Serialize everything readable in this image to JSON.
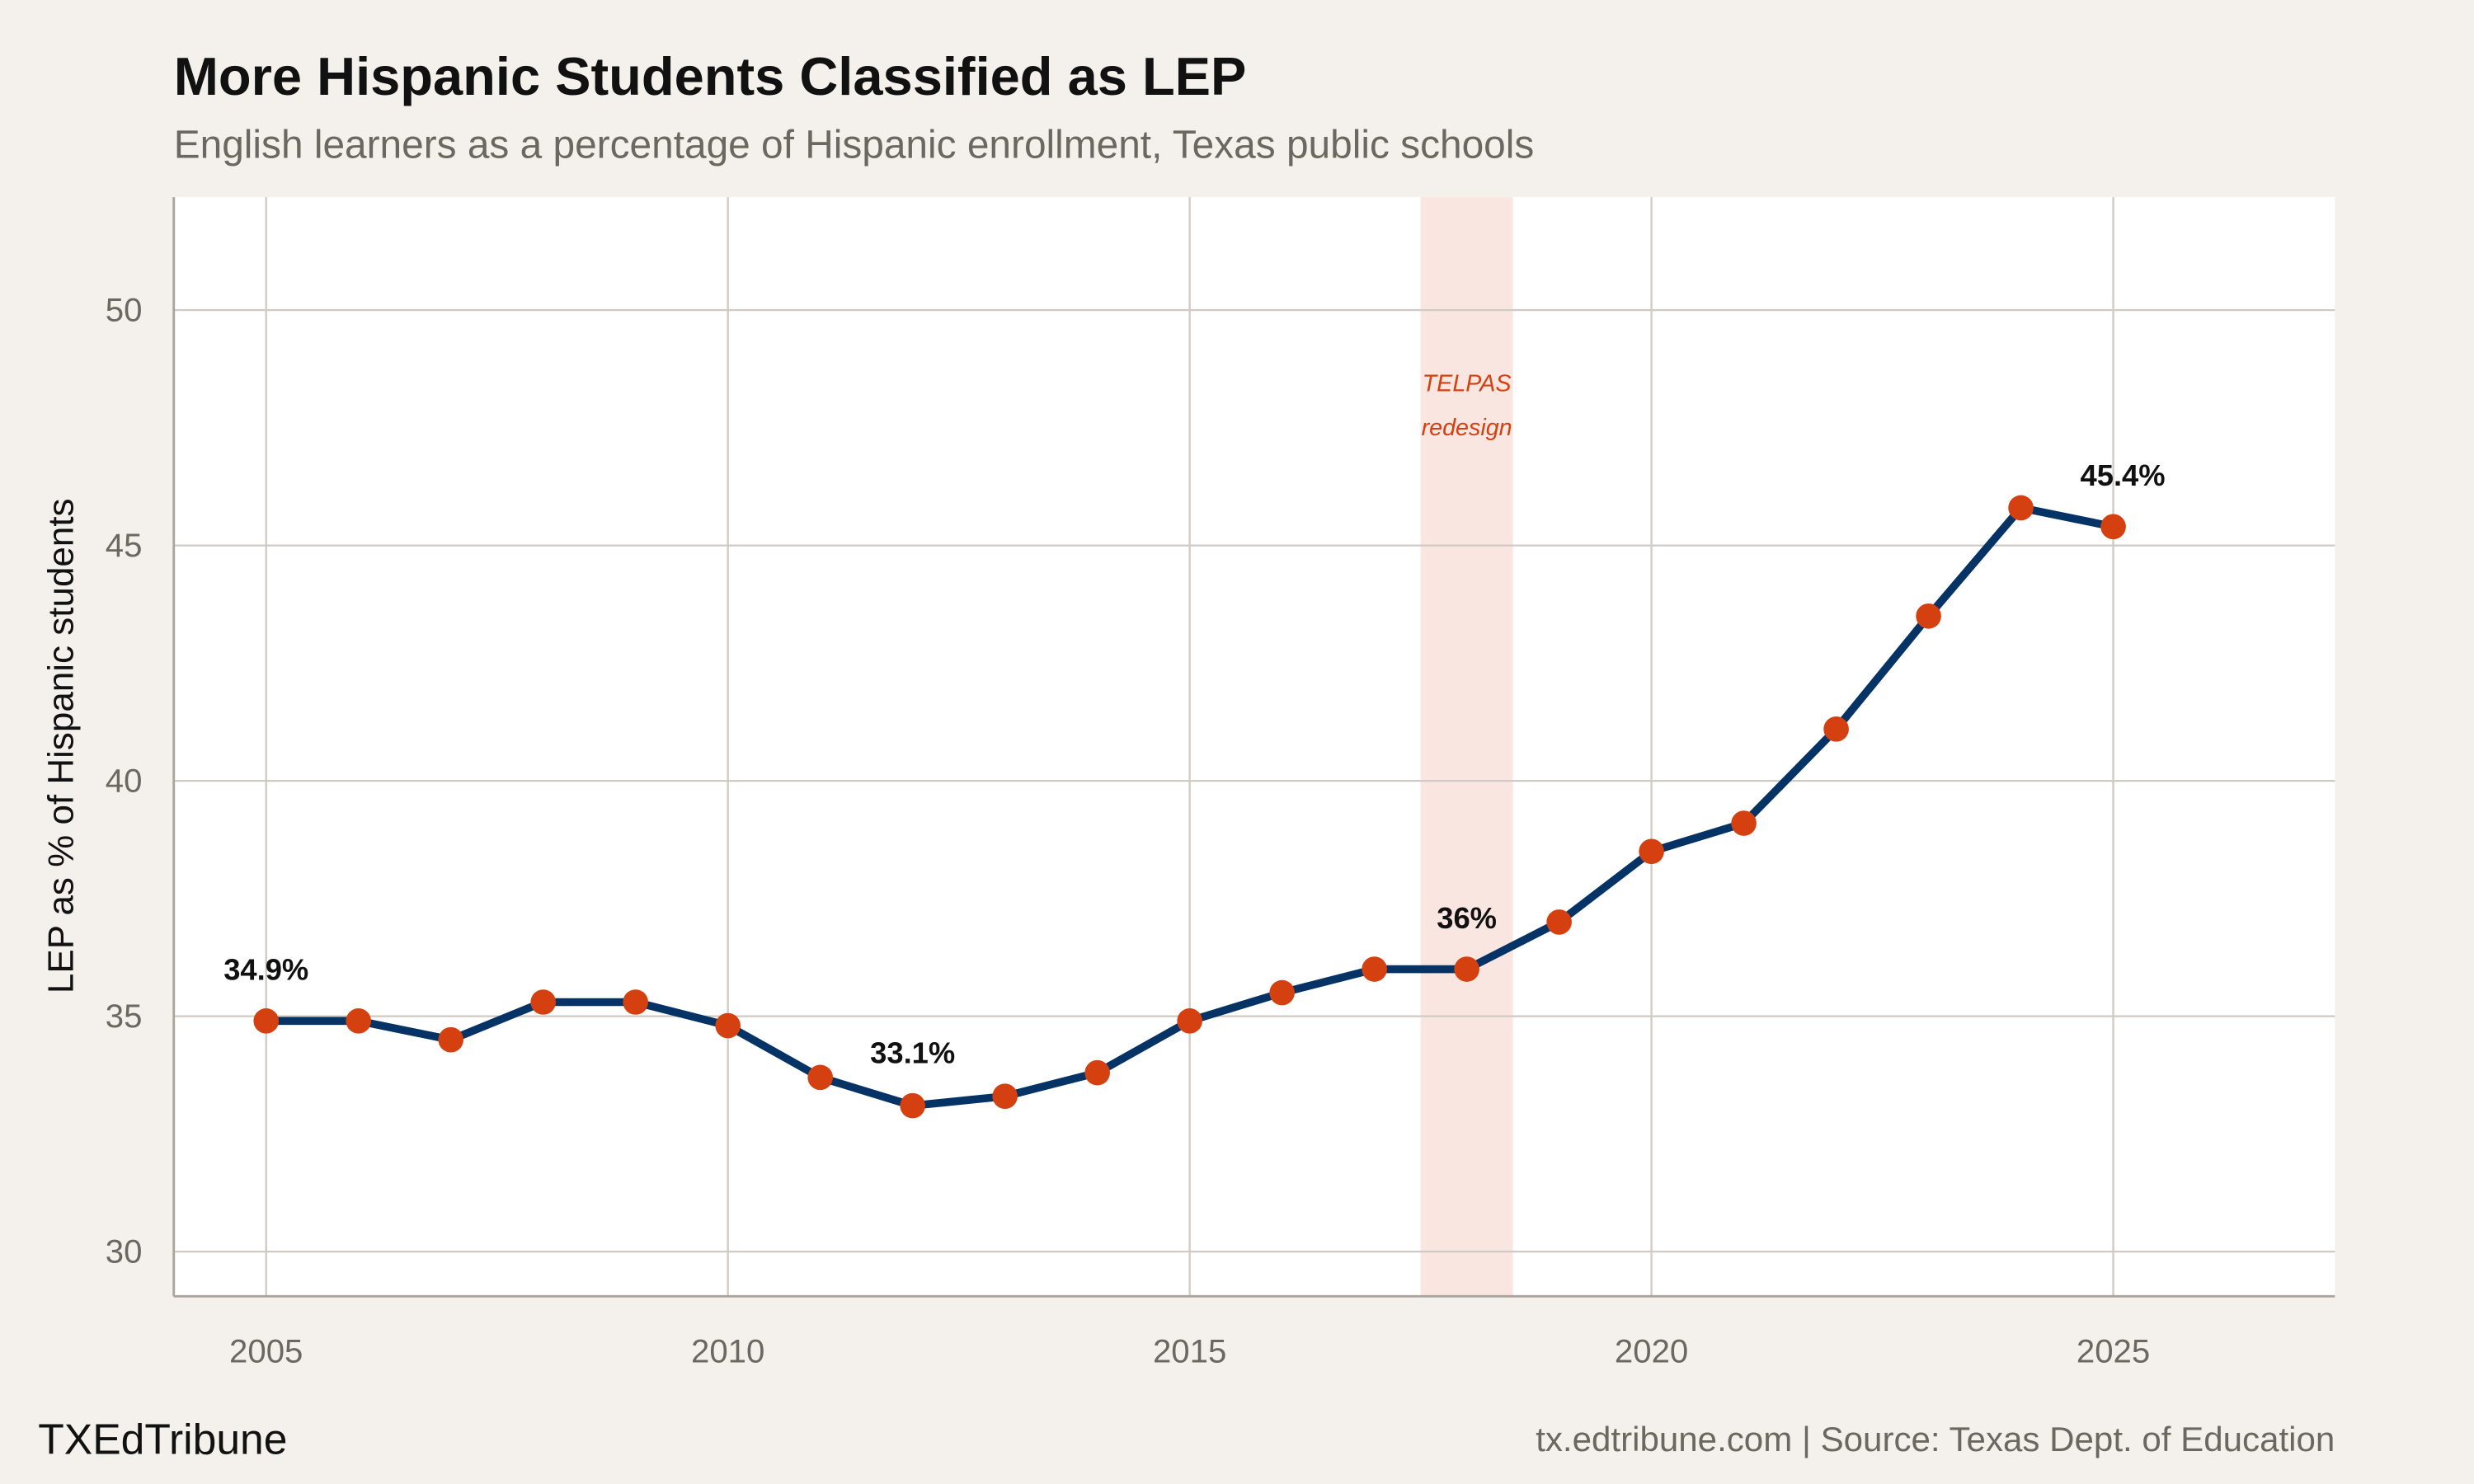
{
  "colors": {
    "background": "#f4f1ec",
    "panel": "#ffffff",
    "line": "#063366",
    "point": "#d4400f",
    "band": "#f9e6e0",
    "annotation": "#d4400f",
    "grid": "#cfcac3"
  },
  "chart_data": {
    "type": "line",
    "title": "More Hispanic Students Classified as LEP",
    "subtitle": "English learners as a percentage of Hispanic enrollment, Texas public schools",
    "xlabel": "",
    "ylabel": "LEP as % of Hispanic students",
    "xlim": [
      2004,
      2027.4
    ],
    "ylim": [
      29.05,
      52.4
    ],
    "xticks": [
      2005,
      2010,
      2015,
      2020,
      2025
    ],
    "yticks": [
      30,
      35,
      40,
      45,
      50
    ],
    "grid": true,
    "x": [
      2005,
      2006,
      2007,
      2008,
      2009,
      2010,
      2011,
      2012,
      2013,
      2014,
      2015,
      2016,
      2017,
      2018,
      2019,
      2020,
      2021,
      2022,
      2023,
      2024,
      2025
    ],
    "series": [
      {
        "name": "LEP share",
        "values": [
          34.9,
          34.9,
          34.5,
          35.3,
          35.3,
          34.8,
          33.7,
          33.1,
          33.3,
          33.8,
          34.9,
          35.5,
          36.0,
          36.0,
          37.0,
          38.5,
          39.1,
          41.1,
          43.5,
          45.8,
          45.4
        ]
      }
    ],
    "data_labels": [
      {
        "x": 2005,
        "y": 34.9,
        "text": "34.9%"
      },
      {
        "x": 2012,
        "y": 33.1,
        "text": "33.1%"
      },
      {
        "x": 2018,
        "y": 36.0,
        "text": "36%"
      },
      {
        "x": 2025,
        "y": 45.4,
        "text": "45.4%"
      }
    ],
    "shaded_band": {
      "x0": 2017.5,
      "x1": 2018.5,
      "label_line1": "TELPAS",
      "label_line2": "redesign"
    }
  },
  "footer": {
    "brand": "TXEdTribune",
    "source": "tx.edtribune.com | Source: Texas Dept. of Education"
  }
}
